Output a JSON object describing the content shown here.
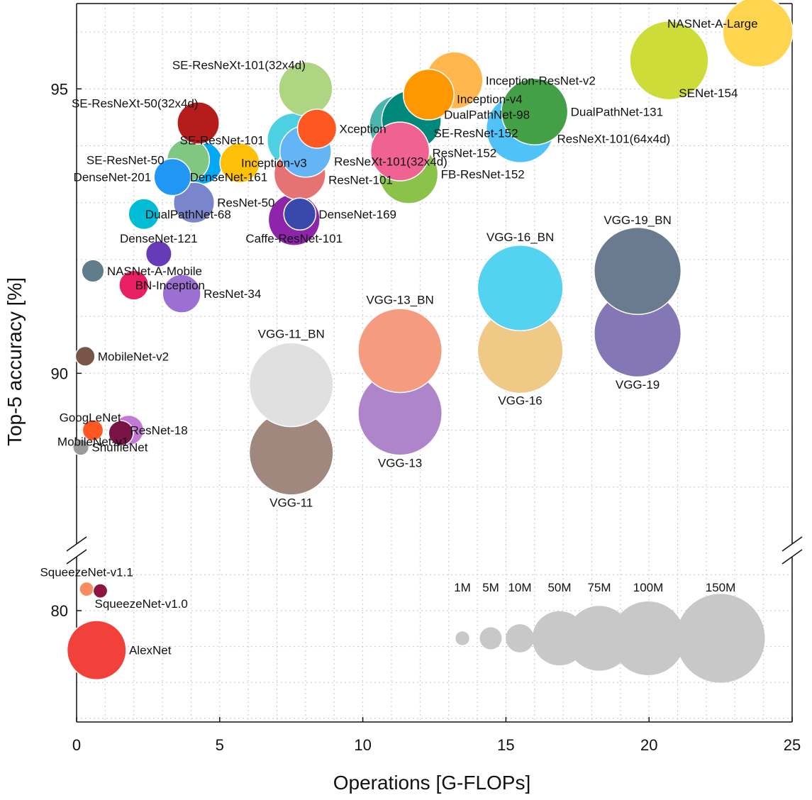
{
  "chart_data": {
    "type": "scatter",
    "title": "",
    "xlabel": "Operations [G-FLOPs]",
    "ylabel": "Top-5 accuracy [%]",
    "xlim": [
      0,
      25
    ],
    "ylim_upper": [
      87,
      96.5
    ],
    "ylim_lower": [
      76.9,
      81.5
    ],
    "axis_break_between": [
      81.5,
      87
    ],
    "x_ticks": [
      0,
      5,
      10,
      15,
      20,
      25
    ],
    "y_ticks": [
      80,
      90,
      95
    ],
    "grid": true,
    "series": [
      {
        "name": "AlexNet",
        "gflops": 0.7,
        "top5": 78.9,
        "params_M": 61,
        "color": "#f2413b"
      },
      {
        "name": "SqueezeNet-v1.1",
        "gflops": 0.35,
        "top5": 80.6,
        "params_M": 1.2,
        "color": "#f98b60"
      },
      {
        "name": "SqueezeNet-v1.0",
        "gflops": 0.83,
        "top5": 80.55,
        "params_M": 1.2,
        "color": "#8e1541"
      },
      {
        "name": "ShuffleNet",
        "gflops": 0.15,
        "top5": 88.7,
        "params_M": 1.8,
        "color": "#9a9a9a"
      },
      {
        "name": "GoogLeNet",
        "gflops": 1.55,
        "top5": 88.95,
        "params_M": 7,
        "color": "#7b1446"
      },
      {
        "name": "MobileNet-v1",
        "gflops": 0.57,
        "top5": 89.0,
        "params_M": 4.2,
        "color": "#ff5722"
      },
      {
        "name": "ResNet-18",
        "gflops": 1.82,
        "top5": 89.0,
        "params_M": 11.7,
        "color": "#c27ad6"
      },
      {
        "name": "MobileNet-v2",
        "gflops": 0.3,
        "top5": 90.3,
        "params_M": 3.5,
        "color": "#795548"
      },
      {
        "name": "BN-Inception",
        "gflops": 2.0,
        "top5": 91.55,
        "params_M": 11.3,
        "color": "#e91e63"
      },
      {
        "name": "ResNet-34",
        "gflops": 3.67,
        "top5": 91.4,
        "params_M": 21.8,
        "color": "#9c6fd2"
      },
      {
        "name": "NASNet-A-Mobile",
        "gflops": 0.57,
        "top5": 91.8,
        "params_M": 5.3,
        "color": "#607d8b"
      },
      {
        "name": "DenseNet-121",
        "gflops": 2.87,
        "top5": 92.1,
        "params_M": 8,
        "color": "#673ab7"
      },
      {
        "name": "DualPathNet-68",
        "gflops": 2.35,
        "top5": 92.8,
        "params_M": 12.6,
        "color": "#00bcd4"
      },
      {
        "name": "ResNet-50",
        "gflops": 4.1,
        "top5": 93.0,
        "params_M": 25.6,
        "color": "#7986cb"
      },
      {
        "name": "DenseNet-201",
        "gflops": 3.35,
        "top5": 93.45,
        "params_M": 20,
        "color": "#2196f3"
      },
      {
        "name": "DenseNet-161",
        "gflops": 4.35,
        "top5": 93.7,
        "params_M": 28.7,
        "color": "#03a9f4"
      },
      {
        "name": "SE-ResNet-50",
        "gflops": 3.9,
        "top5": 93.75,
        "params_M": 28,
        "color": "#81c784"
      },
      {
        "name": "Inception-v3",
        "gflops": 5.7,
        "top5": 93.7,
        "params_M": 23.8,
        "color": "#ffc107"
      },
      {
        "name": "SE-ResNeXt-50(32x4d)",
        "gflops": 4.25,
        "top5": 94.4,
        "params_M": 27.6,
        "color": "#b71c1c"
      },
      {
        "name": "DenseNet-169",
        "gflops": 7.8,
        "top5": 92.8,
        "params_M": 14,
        "color": "#3949ab"
      },
      {
        "name": "Caffe-ResNet-101",
        "gflops": 7.6,
        "top5": 92.7,
        "params_M": 44.5,
        "color": "#8e24aa"
      },
      {
        "name": "ResNet-101",
        "gflops": 7.8,
        "top5": 93.5,
        "params_M": 44.5,
        "color": "#e57373"
      },
      {
        "name": "ResNeXt-101(32x4d)",
        "gflops": 8.0,
        "top5": 93.9,
        "params_M": 44.2,
        "color": "#64b5f6"
      },
      {
        "name": "SE-ResNet-101",
        "gflops": 7.6,
        "top5": 94.1,
        "params_M": 49.3,
        "color": "#4dd0e1"
      },
      {
        "name": "Xception",
        "gflops": 8.4,
        "top5": 94.3,
        "params_M": 22.9,
        "color": "#ff5722"
      },
      {
        "name": "SE-ResNeXt-101(32x4d)",
        "gflops": 8.0,
        "top5": 95.0,
        "params_M": 49,
        "color": "#aed581"
      },
      {
        "name": "FB-ResNet-152",
        "gflops": 11.6,
        "top5": 93.5,
        "params_M": 60.2,
        "color": "#8bc34a"
      },
      {
        "name": "ResNet-152",
        "gflops": 11.3,
        "top5": 93.9,
        "params_M": 60.2,
        "color": "#f06292"
      },
      {
        "name": "SE-ResNet-152",
        "gflops": 11.3,
        "top5": 94.35,
        "params_M": 66.8,
        "color": "#4db6ac"
      },
      {
        "name": "DualPathNet-98",
        "gflops": 11.7,
        "top5": 94.45,
        "params_M": 61.6,
        "color": "#00897b"
      },
      {
        "name": "Inception-v4",
        "gflops": 12.3,
        "top5": 94.9,
        "params_M": 42.7,
        "color": "#ff9800"
      },
      {
        "name": "Inception-ResNet-v2",
        "gflops": 13.2,
        "top5": 95.15,
        "params_M": 55.8,
        "color": "#ffb74d"
      },
      {
        "name": "DualPathNet-131",
        "gflops": 16.0,
        "top5": 94.6,
        "params_M": 79.3,
        "color": "#43a047"
      },
      {
        "name": "ResNeXt-101(64x4d)",
        "gflops": 15.5,
        "top5": 94.3,
        "params_M": 83.5,
        "color": "#4fc3f7"
      },
      {
        "name": "SENet-154",
        "gflops": 20.7,
        "top5": 95.5,
        "params_M": 115,
        "color": "#cddc39"
      },
      {
        "name": "NASNet-A-Large",
        "gflops": 23.8,
        "top5": 96.0,
        "params_M": 88.9,
        "color": "#ffd54f"
      },
      {
        "name": "VGG-11",
        "gflops": 7.5,
        "top5": 88.6,
        "params_M": 132.9,
        "color": "#a1887f"
      },
      {
        "name": "VGG-11_BN",
        "gflops": 7.5,
        "top5": 89.8,
        "params_M": 132.9,
        "color": "#e0e0e0"
      },
      {
        "name": "VGG-13",
        "gflops": 11.3,
        "top5": 89.3,
        "params_M": 133,
        "color": "#ae85cb"
      },
      {
        "name": "VGG-13_BN",
        "gflops": 11.3,
        "top5": 90.4,
        "params_M": 133,
        "color": "#f59c80"
      },
      {
        "name": "VGG-16",
        "gflops": 15.5,
        "top5": 90.4,
        "params_M": 138.4,
        "color": "#f0c987"
      },
      {
        "name": "VGG-16_BN",
        "gflops": 15.5,
        "top5": 91.5,
        "params_M": 138.4,
        "color": "#53d3ef"
      },
      {
        "name": "VGG-19",
        "gflops": 19.6,
        "top5": 90.7,
        "params_M": 143.7,
        "color": "#8477b5"
      },
      {
        "name": "VGG-19_BN",
        "gflops": 19.6,
        "top5": 91.8,
        "params_M": 143.7,
        "color": "#6b7b8f"
      }
    ],
    "legend": {
      "title": "",
      "placement": "bottom-right",
      "entries": [
        {
          "label": "1M",
          "params_M": 1
        },
        {
          "label": "5M",
          "params_M": 5
        },
        {
          "label": "10M",
          "params_M": 10
        },
        {
          "label": "50M",
          "params_M": 50
        },
        {
          "label": "75M",
          "params_M": 75
        },
        {
          "label": "100M",
          "params_M": 100
        },
        {
          "label": "150M",
          "params_M": 150
        }
      ],
      "color": "#c8c8c8"
    }
  }
}
